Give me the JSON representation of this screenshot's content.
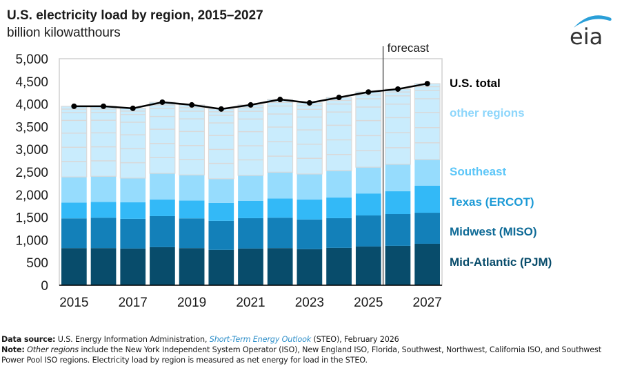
{
  "title": "U.S. electricity load by region, 2015–2027",
  "subtitle": "billion kilowatthours",
  "logo_text": "eia",
  "colors": {
    "pjm": "#084c6b",
    "miso": "#1380b9",
    "ercot": "#33b9f7",
    "southeast": "#96dcfd",
    "other": "#c9ecfd",
    "other_grid": "#d9d9d9",
    "total_line": "#000000",
    "logo_arc": "#2a9fd8",
    "logo_text": "#333333",
    "link": "#2f8fc9"
  },
  "chart_data": {
    "type": "bar",
    "stacked": true,
    "title": "U.S. electricity load by region, 2015–2027",
    "ylabel": "billion kilowatthours",
    "xlabel": "",
    "ylim": [
      0,
      5000
    ],
    "yticks": [
      0,
      500,
      1000,
      1500,
      2000,
      2500,
      3000,
      3500,
      4000,
      4500,
      5000
    ],
    "ytick_labels": [
      "0",
      "500",
      "1,000",
      "1,500",
      "2,000",
      "2,500",
      "3,000",
      "3,500",
      "4,000",
      "4,500",
      "5,000"
    ],
    "categories": [
      "2015",
      "2016",
      "2017",
      "2018",
      "2019",
      "2020",
      "2021",
      "2022",
      "2023",
      "2024",
      "2025",
      "2026",
      "2027"
    ],
    "xtick_labels": [
      "2015",
      "",
      "2017",
      "",
      "2019",
      "",
      "2021",
      "",
      "2023",
      "",
      "2025",
      "",
      "2027"
    ],
    "forecast_start": "2026",
    "forecast_label": "forecast",
    "grid": false,
    "series": [
      {
        "name": "Mid-Atlantic (PJM)",
        "key": "pjm",
        "values": [
          820,
          820,
          810,
          840,
          820,
          780,
          810,
          820,
          795,
          825,
          855,
          870,
          915
        ]
      },
      {
        "name": "Midwest (MISO)",
        "key": "miso",
        "values": [
          655,
          670,
          655,
          685,
          655,
          640,
          670,
          670,
          655,
          655,
          685,
          700,
          685
        ]
      },
      {
        "name": "Texas (ERCOT)",
        "key": "ercot",
        "values": [
          350,
          350,
          365,
          365,
          395,
          395,
          380,
          425,
          440,
          455,
          485,
          505,
          595
        ]
      },
      {
        "name": "Southeast",
        "key": "southeast",
        "values": [
          565,
          565,
          535,
          580,
          565,
          535,
          565,
          580,
          565,
          595,
          580,
          595,
          580
        ]
      },
      {
        "name": "other regions",
        "key": "other",
        "values": [
          1560,
          1545,
          1540,
          1570,
          1545,
          1540,
          1555,
          1605,
          1570,
          1615,
          1660,
          1660,
          1675
        ]
      }
    ],
    "total": {
      "name": "U.S. total",
      "values": [
        3950,
        3950,
        3905,
        4040,
        3980,
        3890,
        3980,
        4100,
        4025,
        4145,
        4265,
        4330,
        4450
      ]
    },
    "legend_placement": "right",
    "legend": [
      {
        "label": "U.S. total",
        "key": "total_line"
      },
      {
        "label": "other regions",
        "key": "other"
      },
      {
        "label": "Southeast",
        "key": "southeast"
      },
      {
        "label": "Texas (ERCOT)",
        "key": "ercot"
      },
      {
        "label": "Midwest (MISO)",
        "key": "miso"
      },
      {
        "label": "Mid-Atlantic (PJM)",
        "key": "pjm"
      }
    ]
  },
  "footer": {
    "source_label": "Data source:",
    "source_text_1": " U.S. Energy Information Administration, ",
    "source_link": "Short-Term Energy Outlook",
    "source_text_2": " (STEO), February 2026",
    "note_label": "Note:",
    "note_italic": "Other regions",
    "note_text": " include the New York Independent System Operator (ISO), New England ISO, Florida, Southwest, Northwest, California ISO, and Southwest Power Pool ISO regions. Electricity load by region is measured as net energy for load in the STEO."
  }
}
